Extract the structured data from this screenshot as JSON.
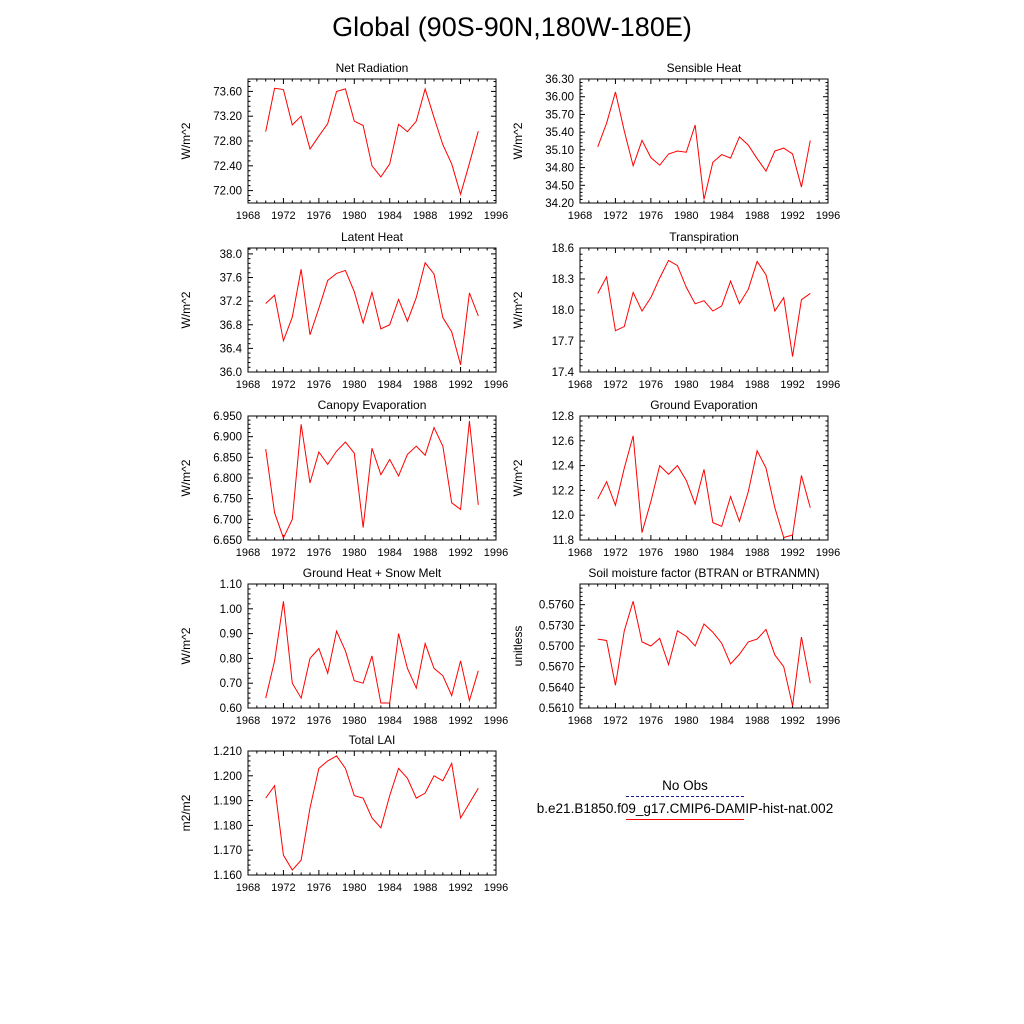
{
  "title": "Global (90S-90N,180W-180E)",
  "colors": {
    "model_line": "#ff0000",
    "obs_line": "#1a1a8c",
    "axis": "#000000"
  },
  "legend": {
    "obs_label": "No Obs",
    "model_label": "b.e21.B1850.f09_g17.CMIP6-DAMIP-hist-nat.002"
  },
  "chart_data": [
    {
      "type": "line",
      "title": "Net Radiation",
      "ylabel": "W/m^2",
      "xlim": [
        1968,
        1996
      ],
      "xticks": [
        1968,
        1972,
        1976,
        1980,
        1984,
        1988,
        1992,
        1996
      ],
      "ylim": [
        71.8,
        73.8
      ],
      "yticks": [
        72.0,
        72.4,
        72.8,
        73.2,
        73.6
      ],
      "ytick_decimals": 2,
      "x": [
        1970,
        1971,
        1972,
        1973,
        1974,
        1975,
        1976,
        1977,
        1978,
        1979,
        1980,
        1981,
        1982,
        1983,
        1984,
        1985,
        1986,
        1987,
        1988,
        1989,
        1990,
        1991,
        1992,
        1993,
        1994
      ],
      "series": [
        {
          "values": [
            72.95,
            73.65,
            73.63,
            73.06,
            73.2,
            72.67,
            72.88,
            73.08,
            73.6,
            73.64,
            73.12,
            73.05,
            72.4,
            72.22,
            72.43,
            73.07,
            72.95,
            73.12,
            73.64,
            73.18,
            72.74,
            72.43,
            71.94,
            72.44,
            72.96
          ]
        }
      ]
    },
    {
      "type": "line",
      "title": "Sensible Heat",
      "ylabel": "W/m^2",
      "xlim": [
        1968,
        1996
      ],
      "xticks": [
        1968,
        1972,
        1976,
        1980,
        1984,
        1988,
        1992,
        1996
      ],
      "ylim": [
        34.2,
        36.3
      ],
      "yticks": [
        34.2,
        34.5,
        34.8,
        35.1,
        35.4,
        35.7,
        36.0,
        36.3
      ],
      "ytick_decimals": 2,
      "x": [
        1970,
        1971,
        1972,
        1973,
        1974,
        1975,
        1976,
        1977,
        1978,
        1979,
        1980,
        1981,
        1982,
        1983,
        1984,
        1985,
        1986,
        1987,
        1988,
        1989,
        1990,
        1991,
        1992,
        1993,
        1994
      ],
      "series": [
        {
          "values": [
            35.15,
            35.55,
            36.08,
            35.42,
            34.83,
            35.26,
            34.97,
            34.84,
            35.03,
            35.08,
            35.06,
            35.52,
            34.26,
            34.89,
            35.02,
            34.96,
            35.32,
            35.18,
            34.95,
            34.74,
            35.08,
            35.13,
            35.03,
            34.47,
            35.26
          ]
        }
      ]
    },
    {
      "type": "line",
      "title": "Latent Heat",
      "ylabel": "W/m^2",
      "xlim": [
        1968,
        1996
      ],
      "xticks": [
        1968,
        1972,
        1976,
        1980,
        1984,
        1988,
        1992,
        1996
      ],
      "ylim": [
        36.0,
        38.1
      ],
      "yticks": [
        36.0,
        36.4,
        36.8,
        37.2,
        37.6,
        38.0
      ],
      "ytick_decimals": 1,
      "x": [
        1970,
        1971,
        1972,
        1973,
        1974,
        1975,
        1976,
        1977,
        1978,
        1979,
        1980,
        1981,
        1982,
        1983,
        1984,
        1985,
        1986,
        1987,
        1988,
        1989,
        1990,
        1991,
        1992,
        1993,
        1994
      ],
      "series": [
        {
          "values": [
            37.16,
            37.3,
            36.53,
            36.93,
            37.74,
            36.63,
            37.08,
            37.55,
            37.67,
            37.72,
            37.36,
            36.83,
            37.35,
            36.73,
            36.8,
            37.23,
            36.86,
            37.26,
            37.85,
            37.66,
            36.92,
            36.68,
            36.12,
            37.34,
            36.95
          ]
        }
      ]
    },
    {
      "type": "line",
      "title": "Transpiration",
      "ylabel": "W/m^2",
      "xlim": [
        1968,
        1996
      ],
      "xticks": [
        1968,
        1972,
        1976,
        1980,
        1984,
        1988,
        1992,
        1996
      ],
      "ylim": [
        17.4,
        18.6
      ],
      "yticks": [
        17.4,
        17.7,
        18.0,
        18.3,
        18.6
      ],
      "ytick_decimals": 1,
      "x": [
        1970,
        1971,
        1972,
        1973,
        1974,
        1975,
        1976,
        1977,
        1978,
        1979,
        1980,
        1981,
        1982,
        1983,
        1984,
        1985,
        1986,
        1987,
        1988,
        1989,
        1990,
        1991,
        1992,
        1993,
        1994
      ],
      "series": [
        {
          "values": [
            18.16,
            18.32,
            17.8,
            17.84,
            18.17,
            17.99,
            18.12,
            18.31,
            18.48,
            18.43,
            18.22,
            18.06,
            18.09,
            17.99,
            18.04,
            18.28,
            18.06,
            18.2,
            18.47,
            18.34,
            17.99,
            18.12,
            17.55,
            18.1,
            18.16
          ]
        }
      ]
    },
    {
      "type": "line",
      "title": "Canopy Evaporation",
      "ylabel": "W/m^2",
      "xlim": [
        1968,
        1996
      ],
      "xticks": [
        1968,
        1972,
        1976,
        1980,
        1984,
        1988,
        1992,
        1996
      ],
      "ylim": [
        6.65,
        6.95
      ],
      "yticks": [
        6.65,
        6.7,
        6.75,
        6.8,
        6.85,
        6.9,
        6.95
      ],
      "ytick_decimals": 3,
      "x": [
        1970,
        1971,
        1972,
        1973,
        1974,
        1975,
        1976,
        1977,
        1978,
        1979,
        1980,
        1981,
        1982,
        1983,
        1984,
        1985,
        1986,
        1987,
        1988,
        1989,
        1990,
        1991,
        1992,
        1993,
        1994
      ],
      "series": [
        {
          "values": [
            6.87,
            6.716,
            6.655,
            6.7,
            6.93,
            6.788,
            6.863,
            6.833,
            6.865,
            6.887,
            6.86,
            6.68,
            6.872,
            6.808,
            6.845,
            6.805,
            6.857,
            6.877,
            6.855,
            6.922,
            6.877,
            6.74,
            6.724,
            6.938,
            6.735
          ]
        }
      ]
    },
    {
      "type": "line",
      "title": "Ground Evaporation",
      "ylabel": "W/m^2",
      "xlim": [
        1968,
        1996
      ],
      "xticks": [
        1968,
        1972,
        1976,
        1980,
        1984,
        1988,
        1992,
        1996
      ],
      "ylim": [
        11.8,
        12.8
      ],
      "yticks": [
        11.8,
        12.0,
        12.2,
        12.4,
        12.6,
        12.8
      ],
      "ytick_decimals": 1,
      "x": [
        1970,
        1971,
        1972,
        1973,
        1974,
        1975,
        1976,
        1977,
        1978,
        1979,
        1980,
        1981,
        1982,
        1983,
        1984,
        1985,
        1986,
        1987,
        1988,
        1989,
        1990,
        1991,
        1992,
        1993,
        1994
      ],
      "series": [
        {
          "values": [
            12.13,
            12.27,
            12.08,
            12.38,
            12.64,
            11.86,
            12.11,
            12.4,
            12.33,
            12.4,
            12.28,
            12.09,
            12.37,
            11.94,
            11.91,
            12.15,
            11.95,
            12.19,
            12.52,
            12.38,
            12.06,
            11.82,
            11.84,
            12.32,
            12.06
          ]
        }
      ]
    },
    {
      "type": "line",
      "title": "Ground Heat + Snow Melt",
      "ylabel": "W/m^2",
      "xlim": [
        1968,
        1996
      ],
      "xticks": [
        1968,
        1972,
        1976,
        1980,
        1984,
        1988,
        1992,
        1996
      ],
      "ylim": [
        0.6,
        1.1
      ],
      "yticks": [
        0.6,
        0.7,
        0.8,
        0.9,
        1.0,
        1.1
      ],
      "ytick_decimals": 2,
      "x": [
        1970,
        1971,
        1972,
        1973,
        1974,
        1975,
        1976,
        1977,
        1978,
        1979,
        1980,
        1981,
        1982,
        1983,
        1984,
        1985,
        1986,
        1987,
        1988,
        1989,
        1990,
        1991,
        1992,
        1993,
        1994
      ],
      "series": [
        {
          "values": [
            0.64,
            0.79,
            1.03,
            0.7,
            0.64,
            0.8,
            0.84,
            0.74,
            0.91,
            0.83,
            0.71,
            0.7,
            0.81,
            0.62,
            0.62,
            0.9,
            0.76,
            0.68,
            0.86,
            0.76,
            0.73,
            0.65,
            0.79,
            0.63,
            0.75
          ]
        }
      ]
    },
    {
      "type": "line",
      "title": "Soil moisture factor (BTRAN or BTRANMN)",
      "ylabel": "unitless",
      "xlim": [
        1968,
        1996
      ],
      "xticks": [
        1968,
        1972,
        1976,
        1980,
        1984,
        1988,
        1992,
        1996
      ],
      "ylim": [
        0.561,
        0.579
      ],
      "yticks": [
        0.561,
        0.564,
        0.567,
        0.57,
        0.573,
        0.576
      ],
      "ytick_decimals": 4,
      "x": [
        1970,
        1971,
        1972,
        1973,
        1974,
        1975,
        1976,
        1977,
        1978,
        1979,
        1980,
        1981,
        1982,
        1983,
        1984,
        1985,
        1986,
        1987,
        1988,
        1989,
        1990,
        1991,
        1992,
        1993,
        1994
      ],
      "series": [
        {
          "values": [
            0.571,
            0.5708,
            0.5643,
            0.5722,
            0.5765,
            0.5706,
            0.57,
            0.5711,
            0.5673,
            0.5722,
            0.5714,
            0.57,
            0.5732,
            0.572,
            0.5704,
            0.5674,
            0.5688,
            0.5706,
            0.571,
            0.5724,
            0.5687,
            0.567,
            0.5613,
            0.5713,
            0.5646
          ]
        }
      ]
    },
    {
      "type": "line",
      "title": "Total LAI",
      "ylabel": "m2/m2",
      "xlim": [
        1968,
        1996
      ],
      "xticks": [
        1968,
        1972,
        1976,
        1980,
        1984,
        1988,
        1992,
        1996
      ],
      "ylim": [
        1.16,
        1.21
      ],
      "yticks": [
        1.16,
        1.17,
        1.18,
        1.19,
        1.2,
        1.21
      ],
      "ytick_decimals": 3,
      "x": [
        1970,
        1971,
        1972,
        1973,
        1974,
        1975,
        1976,
        1977,
        1978,
        1979,
        1980,
        1981,
        1982,
        1983,
        1984,
        1985,
        1986,
        1987,
        1988,
        1989,
        1990,
        1991,
        1992,
        1993,
        1994
      ],
      "series": [
        {
          "values": [
            1.191,
            1.196,
            1.168,
            1.162,
            1.166,
            1.187,
            1.203,
            1.206,
            1.208,
            1.203,
            1.192,
            1.191,
            1.183,
            1.179,
            1.192,
            1.203,
            1.199,
            1.191,
            1.193,
            1.2,
            1.198,
            1.205,
            1.183,
            1.189,
            1.195
          ]
        }
      ]
    }
  ]
}
